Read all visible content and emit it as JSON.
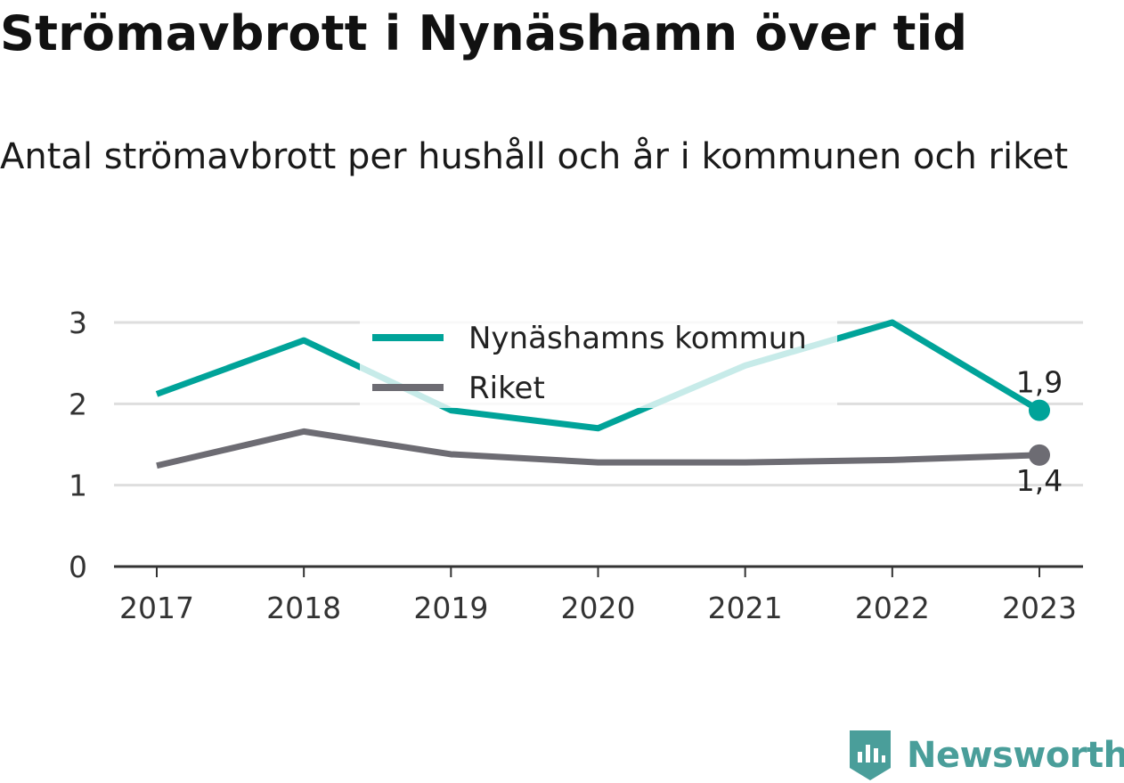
{
  "title": "Strömavbrott i Nynäshamn över tid",
  "subtitle": "Antal strömavbrott per hushåll och år i kommunen och riket",
  "brand": "Newsworthy",
  "colors": {
    "kommun": "#00a399",
    "riket": "#6d6c73",
    "kommun_faded": "#c6e9e6"
  },
  "chart_data": {
    "type": "line",
    "x": [
      "2017",
      "2018",
      "2019",
      "2020",
      "2021",
      "2022",
      "2023"
    ],
    "ylim": [
      0,
      3
    ],
    "yticks": [
      0,
      1,
      2,
      3
    ],
    "grid": true,
    "legend": "top-center",
    "series": [
      {
        "name": "Nynäshamns kommun",
        "values": [
          2.12,
          2.78,
          1.92,
          1.7,
          2.47,
          3.0,
          1.92
        ],
        "end_label": "1,9"
      },
      {
        "name": "Riket",
        "values": [
          1.24,
          1.66,
          1.38,
          1.28,
          1.28,
          1.31,
          1.37
        ],
        "end_label": "1,4"
      }
    ]
  }
}
